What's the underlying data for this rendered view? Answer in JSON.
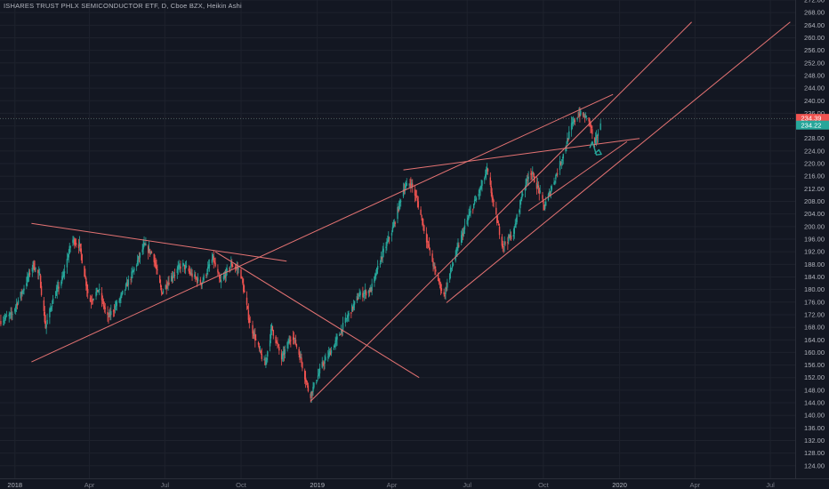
{
  "header": {
    "title": "ISHARES TRUST PHLX SEMICONDUCTOR ETF, D, Cboe BZX, Heikin Ashi"
  },
  "colors": {
    "background": "#131722",
    "grid": "#1e222d",
    "up_candle": "#26a69a",
    "down_candle": "#ef5350",
    "trendline": "#e57373",
    "curve_marker": "#26a69a",
    "axis_text": "#b2b5be"
  },
  "price_tags": [
    {
      "label": "234.39",
      "value": 234.39,
      "color": "#ef5350"
    },
    {
      "label": "234.22",
      "value": 234.22,
      "color": "#26a69a"
    }
  ],
  "chart_data": {
    "type": "candlestick",
    "title": "ISHARES TRUST PHLX SEMICONDUCTOR ETF, D, Cboe BZX, Heikin Ashi",
    "xlabel": "",
    "ylabel": "",
    "ylim": [
      120,
      272
    ],
    "xlim": [
      "2017-12-14",
      "2020-07-31"
    ],
    "y_ticks": [
      "124.00",
      "128.00",
      "132.00",
      "136.00",
      "140.00",
      "144.00",
      "148.00",
      "152.00",
      "156.00",
      "160.00",
      "164.00",
      "168.00",
      "172.00",
      "176.00",
      "180.00",
      "184.00",
      "188.00",
      "192.00",
      "196.00",
      "200.00",
      "204.00",
      "208.00",
      "212.00",
      "216.00",
      "220.00",
      "224.00",
      "228.00",
      "232.00",
      "236.00",
      "240.00",
      "244.00",
      "248.00",
      "252.00",
      "256.00",
      "260.00",
      "264.00",
      "268.00",
      "272.00"
    ],
    "x_ticks": [
      {
        "label": "2018",
        "date": "2018-01-01",
        "year": true
      },
      {
        "label": "Apr",
        "date": "2018-04-01",
        "year": false
      },
      {
        "label": "Jul",
        "date": "2018-07-01",
        "year": false
      },
      {
        "label": "Oct",
        "date": "2018-10-01",
        "year": false
      },
      {
        "label": "2019",
        "date": "2019-01-01",
        "year": true
      },
      {
        "label": "Apr",
        "date": "2019-04-01",
        "year": false
      },
      {
        "label": "Jul",
        "date": "2019-07-01",
        "year": false
      },
      {
        "label": "Oct",
        "date": "2019-10-01",
        "year": false
      },
      {
        "label": "2020",
        "date": "2020-01-01",
        "year": true
      },
      {
        "label": "Apr",
        "date": "2020-04-01",
        "year": false
      },
      {
        "label": "Jul",
        "date": "2020-07-01",
        "year": false
      }
    ],
    "grid": true,
    "price_path": [
      [
        "2017-12-15",
        170
      ],
      [
        "2017-12-29",
        172
      ],
      [
        "2018-01-12",
        180
      ],
      [
        "2018-01-24",
        188
      ],
      [
        "2018-02-01",
        184
      ],
      [
        "2018-02-08",
        168
      ],
      [
        "2018-02-16",
        176
      ],
      [
        "2018-03-01",
        184
      ],
      [
        "2018-03-12",
        196
      ],
      [
        "2018-03-21",
        194
      ],
      [
        "2018-04-02",
        176
      ],
      [
        "2018-04-13",
        180
      ],
      [
        "2018-04-24",
        171
      ],
      [
        "2018-05-07",
        176
      ],
      [
        "2018-05-22",
        184
      ],
      [
        "2018-06-07",
        194
      ],
      [
        "2018-06-18",
        191
      ],
      [
        "2018-06-28",
        179
      ],
      [
        "2018-07-10",
        184
      ],
      [
        "2018-07-23",
        188
      ],
      [
        "2018-08-06",
        184
      ],
      [
        "2018-08-15",
        182
      ],
      [
        "2018-08-29",
        190
      ],
      [
        "2018-09-07",
        182
      ],
      [
        "2018-09-20",
        188
      ],
      [
        "2018-10-01",
        186
      ],
      [
        "2018-10-12",
        170
      ],
      [
        "2018-10-25",
        160
      ],
      [
        "2018-10-31",
        156
      ],
      [
        "2018-11-08",
        168
      ],
      [
        "2018-11-20",
        158
      ],
      [
        "2018-12-03",
        166
      ],
      [
        "2018-12-13",
        158
      ],
      [
        "2018-12-24",
        146
      ],
      [
        "2019-01-08",
        156
      ],
      [
        "2019-01-22",
        162
      ],
      [
        "2019-02-05",
        170
      ],
      [
        "2019-02-21",
        178
      ],
      [
        "2019-03-08",
        180
      ],
      [
        "2019-03-20",
        190
      ],
      [
        "2019-04-04",
        200
      ],
      [
        "2019-04-16",
        212
      ],
      [
        "2019-04-25",
        214
      ],
      [
        "2019-05-03",
        208
      ],
      [
        "2019-05-14",
        196
      ],
      [
        "2019-05-24",
        186
      ],
      [
        "2019-06-04",
        178
      ],
      [
        "2019-06-12",
        186
      ],
      [
        "2019-06-24",
        196
      ],
      [
        "2019-07-05",
        204
      ],
      [
        "2019-07-18",
        212
      ],
      [
        "2019-07-26",
        218
      ],
      [
        "2019-08-05",
        204
      ],
      [
        "2019-08-14",
        194
      ],
      [
        "2019-08-27",
        198
      ],
      [
        "2019-09-06",
        210
      ],
      [
        "2019-09-16",
        218
      ],
      [
        "2019-09-26",
        212
      ],
      [
        "2019-10-03",
        206
      ],
      [
        "2019-10-14",
        214
      ],
      [
        "2019-10-25",
        222
      ],
      [
        "2019-11-05",
        232
      ],
      [
        "2019-11-14",
        236
      ],
      [
        "2019-11-26",
        234
      ],
      [
        "2019-12-03",
        226
      ],
      [
        "2019-12-09",
        232
      ]
    ],
    "trendlines": [
      {
        "from": [
          "2018-01-21",
          201
        ],
        "to": [
          "2018-11-25",
          189
        ]
      },
      {
        "from": [
          "2018-01-21",
          157
        ],
        "to": [
          "2019-12-24",
          242
        ]
      },
      {
        "from": [
          "2018-08-31",
          192
        ],
        "to": [
          "2019-05-04",
          152
        ]
      },
      {
        "from": [
          "2018-12-24",
          144.5
        ],
        "to": [
          "2020-03-28",
          265
        ]
      },
      {
        "from": [
          "2019-06-06",
          175.8
        ],
        "to": [
          "2020-07-25",
          265
        ]
      },
      {
        "from": [
          "2019-04-15",
          218
        ],
        "to": [
          "2020-01-25",
          228
        ]
      },
      {
        "from": [
          "2019-09-13",
          205
        ],
        "to": [
          "2020-01-10",
          227
        ]
      }
    ],
    "curve_marker": [
      [
        "2019-11-26",
        225
      ],
      [
        "2019-11-29",
        227
      ],
      [
        "2019-12-01",
        225.4
      ],
      [
        "2019-12-04",
        222.8
      ],
      [
        "2019-12-10",
        223
      ],
      [
        "2019-12-07",
        224.4
      ],
      [
        "2019-12-02",
        223.2
      ]
    ]
  }
}
